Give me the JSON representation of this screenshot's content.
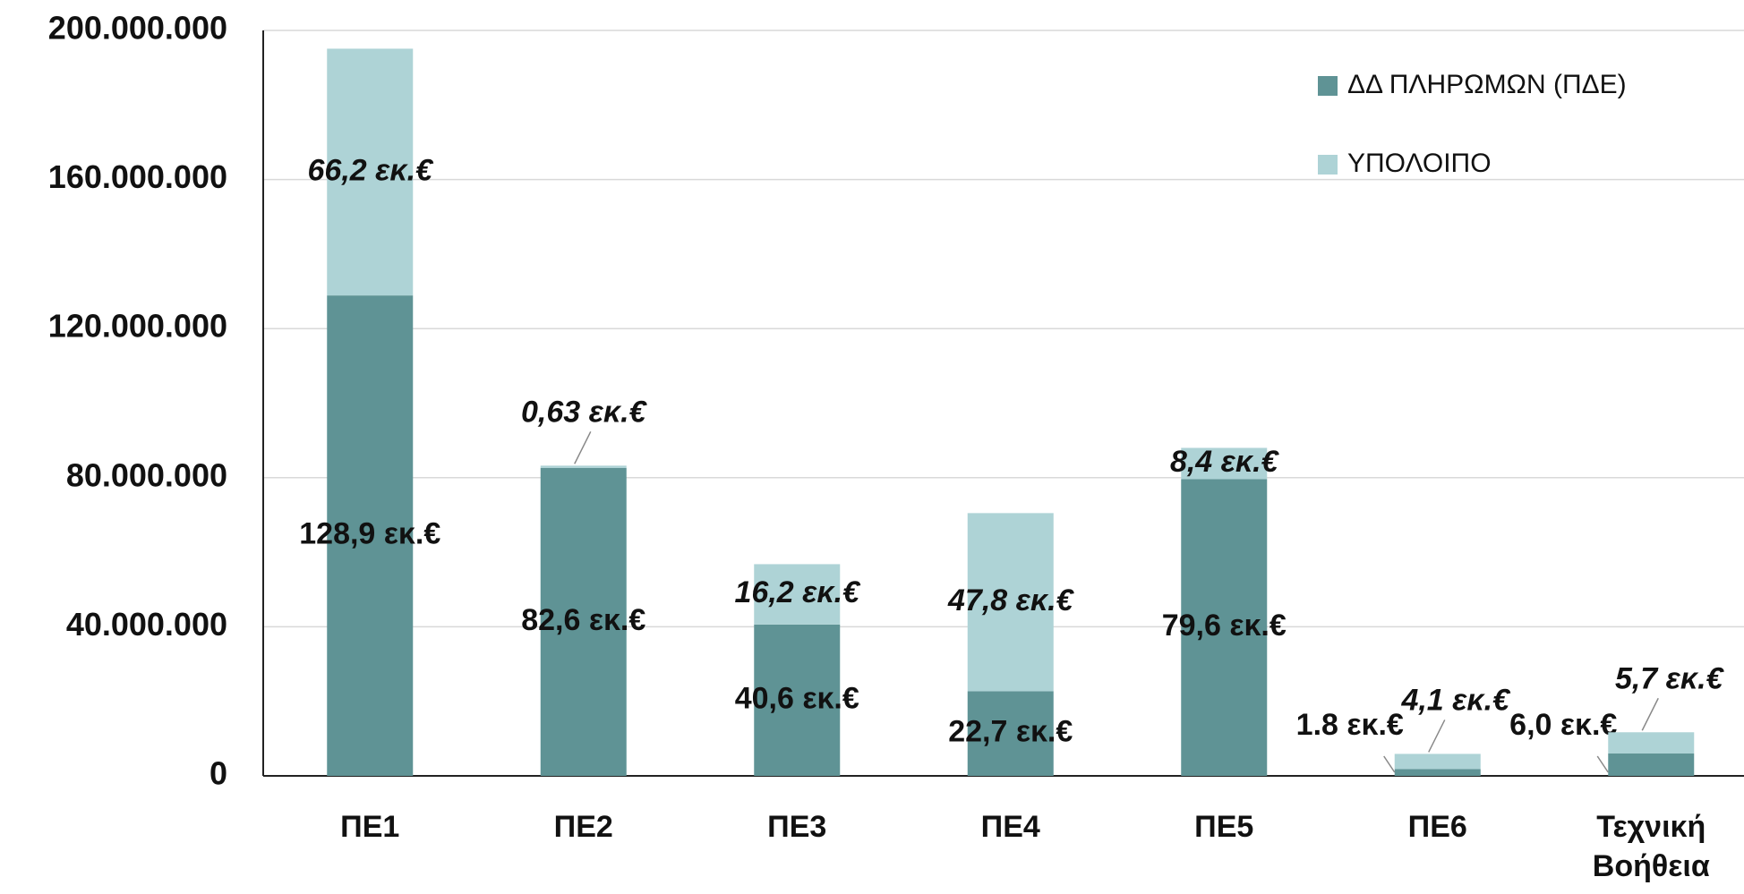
{
  "chart_data": {
    "type": "stacked_bar",
    "categories": [
      "ΠΕ1",
      "ΠΕ2",
      "ΠΕ3",
      "ΠΕ4",
      "ΠΕ5",
      "ΠΕ6",
      "Τεχνική Βοήθεια"
    ],
    "series": [
      {
        "name": "ΔΔ ΠΛΗΡΩΜΩΝ (ΠΔΕ)",
        "color": "#5f9395",
        "values": [
          128900000,
          82600000,
          40600000,
          22700000,
          79600000,
          1800000,
          6000000
        ],
        "value_labels": [
          "128,9 εκ.€",
          "82,6 εκ.€",
          "40,6 εκ.€",
          "22,7 εκ.€",
          "79,6 εκ.€",
          "1.8 εκ.€",
          "6,0 εκ.€"
        ]
      },
      {
        "name": "ΥΠΟΛΟΙΠΟ",
        "color": "#aed3d6",
        "values": [
          66200000,
          630000,
          16200000,
          47800000,
          8400000,
          4100000,
          5700000
        ],
        "value_labels": [
          "66,2 εκ.€",
          "0,63 εκ.€",
          "16,2 εκ.€",
          "47,8 εκ.€",
          "8,4 εκ.€",
          "4,1 εκ.€",
          "5,7 εκ.€"
        ]
      }
    ],
    "ylim": [
      0,
      200000000
    ],
    "yticks": [
      {
        "value": 0,
        "label": "0"
      },
      {
        "value": 40000000,
        "label": "40.000.000"
      },
      {
        "value": 80000000,
        "label": "80.000.000"
      },
      {
        "value": 120000000,
        "label": "120.000.000"
      },
      {
        "value": 160000000,
        "label": "160.000.000"
      },
      {
        "value": 200000000,
        "label": "200.000.000"
      }
    ],
    "grid": true,
    "legend": "upper right"
  }
}
